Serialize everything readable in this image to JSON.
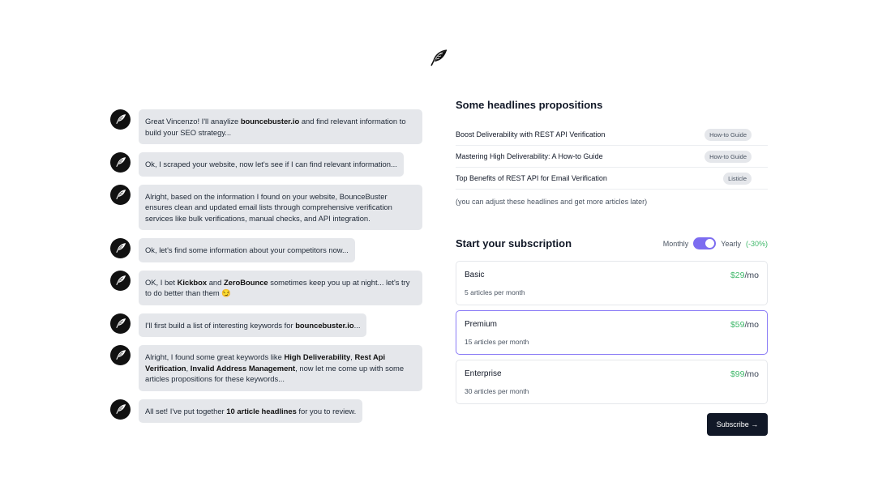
{
  "logo_icon": "feather-icon",
  "messages": [
    {
      "parts": [
        {
          "text": "Great Vincenzo! I'll anaylize "
        },
        {
          "text": "bouncebuster.io",
          "bold": true
        },
        {
          "text": " and find relevant information to build your SEO strategy..."
        }
      ]
    },
    {
      "parts": [
        {
          "text": "Ok, I scraped your website, now let's see if I can find relevant information..."
        }
      ]
    },
    {
      "parts": [
        {
          "text": "Alright, based on the information I found on your website, BounceBuster ensures clean and updated email lists through comprehensive verification services like bulk verifications, manual checks, and API integration."
        }
      ]
    },
    {
      "parts": [
        {
          "text": "Ok, let's find some information about your competitors now..."
        }
      ]
    },
    {
      "parts": [
        {
          "text": "OK, I bet "
        },
        {
          "text": "Kickbox",
          "bold": true
        },
        {
          "text": " and "
        },
        {
          "text": "ZeroBounce",
          "bold": true
        },
        {
          "text": " sometimes keep you up at night... let's try to do better than them 😏"
        }
      ]
    },
    {
      "parts": [
        {
          "text": "I'll first build a list of interesting keywords for "
        },
        {
          "text": "bouncebuster.io",
          "bold": true
        },
        {
          "text": "..."
        }
      ]
    },
    {
      "parts": [
        {
          "text": "Alright, I found some great keywords like "
        },
        {
          "text": "High Deliverability",
          "bold": true
        },
        {
          "text": ", "
        },
        {
          "text": "Rest Api Verification",
          "bold": true
        },
        {
          "text": ", "
        },
        {
          "text": "Invalid Address Management",
          "bold": true
        },
        {
          "text": ", now let me come up with some articles propositions for these keywords..."
        }
      ]
    },
    {
      "parts": [
        {
          "text": "All set! I've put together "
        },
        {
          "text": "10 article headlines",
          "bold": true
        },
        {
          "text": " for you to review."
        }
      ]
    }
  ],
  "headlines": {
    "title": "Some headlines propositions",
    "items": [
      {
        "title": "Boost Deliverability with REST API Verification",
        "tag": "How-to Guide"
      },
      {
        "title": "Mastering High Deliverability: A How-to Guide",
        "tag": "How-to Guide"
      },
      {
        "title": "Top Benefits of REST API for Email Verification",
        "tag": "Listicle"
      }
    ],
    "note": "(you can adjust these headlines and get more articles later)"
  },
  "subscription": {
    "title": "Start your subscription",
    "monthly": "Monthly",
    "yearly": "Yearly",
    "discount": "(-30%)",
    "billing_yearly": true,
    "selected_plan": "Premium",
    "plans": [
      {
        "name": "Basic",
        "price": "$29",
        "unit": "/mo",
        "desc": "5 articles per month"
      },
      {
        "name": "Premium",
        "price": "$59",
        "unit": "/mo",
        "desc": "15 articles per month"
      },
      {
        "name": "Enterprise",
        "price": "$99",
        "unit": "/mo",
        "desc": "30 articles per month"
      }
    ],
    "subscribe_label": "Subscribe →"
  },
  "colors": {
    "accent": "#8b7cf6",
    "green": "#3fb86a",
    "button": "#111827"
  }
}
